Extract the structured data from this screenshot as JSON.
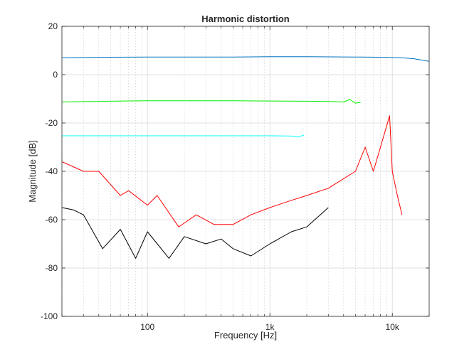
{
  "chart_data": {
    "type": "line",
    "title": "Harmonic distortion",
    "xlabel": "Frequency [Hz]",
    "ylabel": "Magnitude [dB]",
    "xscale": "log",
    "xlim": [
      20,
      20000
    ],
    "ylim": [
      -100,
      20
    ],
    "grid": "on (minor x gridlines dotted)",
    "legend": "none",
    "x_tick_values": [
      100,
      1000,
      10000
    ],
    "x_tick_labels": [
      "100",
      "1k",
      "10k"
    ],
    "y_tick_values": [
      -100,
      -80,
      -60,
      -40,
      -20,
      0,
      20
    ],
    "y_tick_labels": [
      "-100",
      "-80",
      "-60",
      "-40",
      "-20",
      "0",
      "20"
    ],
    "series": [
      {
        "color": "#0072BD",
        "x": [
          20,
          50,
          100,
          200,
          500,
          1000,
          2000,
          5000,
          8000,
          12000,
          15000,
          20000
        ],
        "y": [
          7,
          7.2,
          7.3,
          7.3,
          7.3,
          7.4,
          7.4,
          7.3,
          7.2,
          7.0,
          6.6,
          5.5
        ]
      },
      {
        "color": "#00EE00",
        "x": [
          20,
          50,
          100,
          200,
          500,
          1000,
          2000,
          3000,
          4000,
          4500,
          5000,
          5500
        ],
        "y": [
          -11.3,
          -11,
          -10.8,
          -10.8,
          -10.8,
          -10.9,
          -11,
          -11.1,
          -11.3,
          -10.3,
          -11.8,
          -11.5
        ]
      },
      {
        "color": "#00FFFF",
        "x": [
          20,
          50,
          100,
          200,
          500,
          1000,
          1500,
          1700,
          1900
        ],
        "y": [
          -25.3,
          -25.3,
          -25.3,
          -25.3,
          -25.3,
          -25.3,
          -25.4,
          -25.8,
          -25.0
        ]
      },
      {
        "color": "#FF0000",
        "x": [
          20,
          30,
          40,
          60,
          70,
          100,
          120,
          180,
          250,
          350,
          500,
          700,
          1000,
          1500,
          2000,
          3000,
          5000,
          6000,
          7000,
          8000,
          9500,
          10000,
          11000,
          12000
        ],
        "y": [
          -36,
          -40,
          -40,
          -50,
          -48,
          -54,
          -50,
          -63,
          -58,
          -62,
          -62,
          -58,
          -55,
          -52,
          -50,
          -47,
          -40,
          -30,
          -40,
          -30,
          -17,
          -40,
          -50,
          -58
        ]
      },
      {
        "color": "#000000",
        "x": [
          20,
          25,
          30,
          43,
          60,
          80,
          100,
          150,
          200,
          300,
          400,
          500,
          700,
          1000,
          1500,
          2000,
          3000
        ],
        "y": [
          -55,
          -56,
          -58,
          -72,
          -64,
          -76,
          -65,
          -76,
          -67,
          -70,
          -68,
          -72,
          -75,
          -70,
          -65,
          -63,
          -55
        ]
      }
    ]
  }
}
